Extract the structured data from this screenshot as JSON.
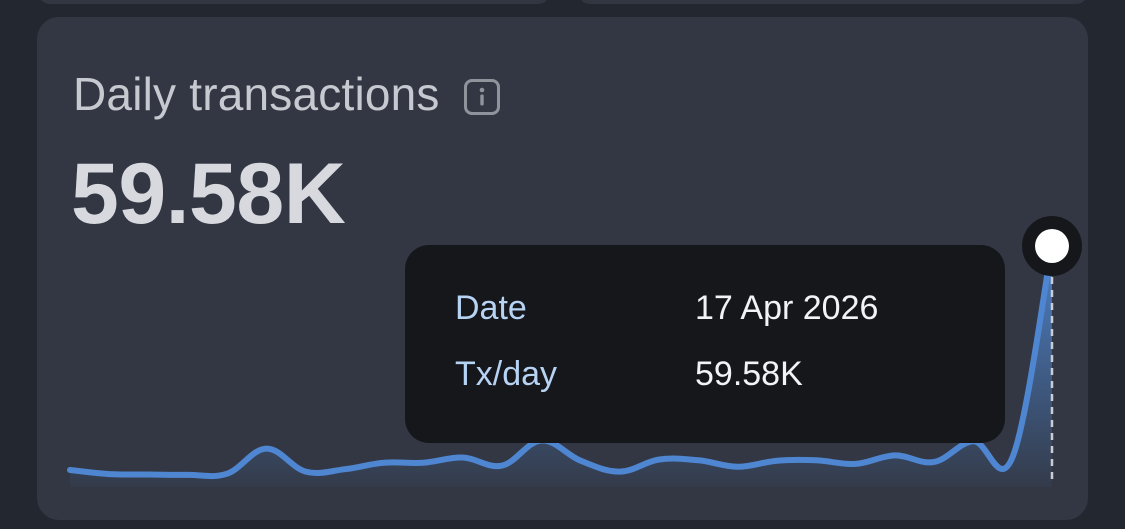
{
  "card": {
    "title": "Daily transactions",
    "info_icon": "info-icon",
    "value": "59.58K"
  },
  "tooltip": {
    "date_label": "Date",
    "date_value": "17 Apr 2026",
    "tx_label": "Tx/day",
    "tx_value": "59.58K"
  },
  "colors": {
    "line": "#4f86d1",
    "area_top": "#4f86d1",
    "tooltip_bg": "#15171b",
    "label_blue": "#b7d3f4"
  },
  "chart_data": {
    "type": "area",
    "series": [
      {
        "values": [
          4.2,
          3.2,
          3.1,
          3.0,
          3.3,
          9.5,
          3.8,
          4.4,
          6.0,
          6.0,
          7.3,
          5.3,
          11.5,
          6.5,
          3.8,
          6.8,
          6.6,
          5.0,
          6.5,
          6.6,
          5.7,
          7.8,
          6.2,
          11.3,
          7.5,
          59.58
        ]
      }
    ],
    "highlight": {
      "date": "17 Apr 2026",
      "value": "59.58K"
    }
  }
}
